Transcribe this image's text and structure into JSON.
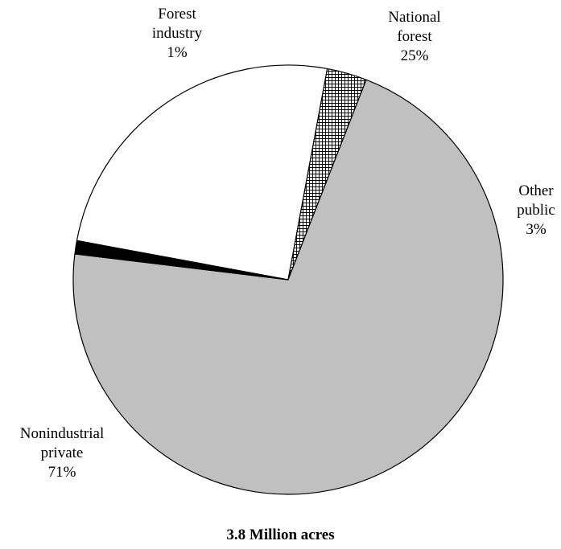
{
  "chart_data": {
    "type": "pie",
    "caption": "3.8 Million acres",
    "slices": [
      {
        "label_lines": [
          "National",
          "forest"
        ],
        "value": 25,
        "value_label": "25%",
        "fill": "#ffffff",
        "pattern": "none"
      },
      {
        "label_lines": [
          "Other",
          "public"
        ],
        "value": 3,
        "value_label": "3%",
        "fill": "#ffffff",
        "pattern": "crosshatch"
      },
      {
        "label_lines": [
          "Nonindustrial",
          "private"
        ],
        "value": 71,
        "value_label": "71%",
        "fill": "#c0c0c0",
        "pattern": "none"
      },
      {
        "label_lines": [
          "Forest",
          "industry"
        ],
        "value": 1,
        "value_label": "1%",
        "fill": "#000000",
        "pattern": "none"
      }
    ],
    "legend": "none"
  }
}
